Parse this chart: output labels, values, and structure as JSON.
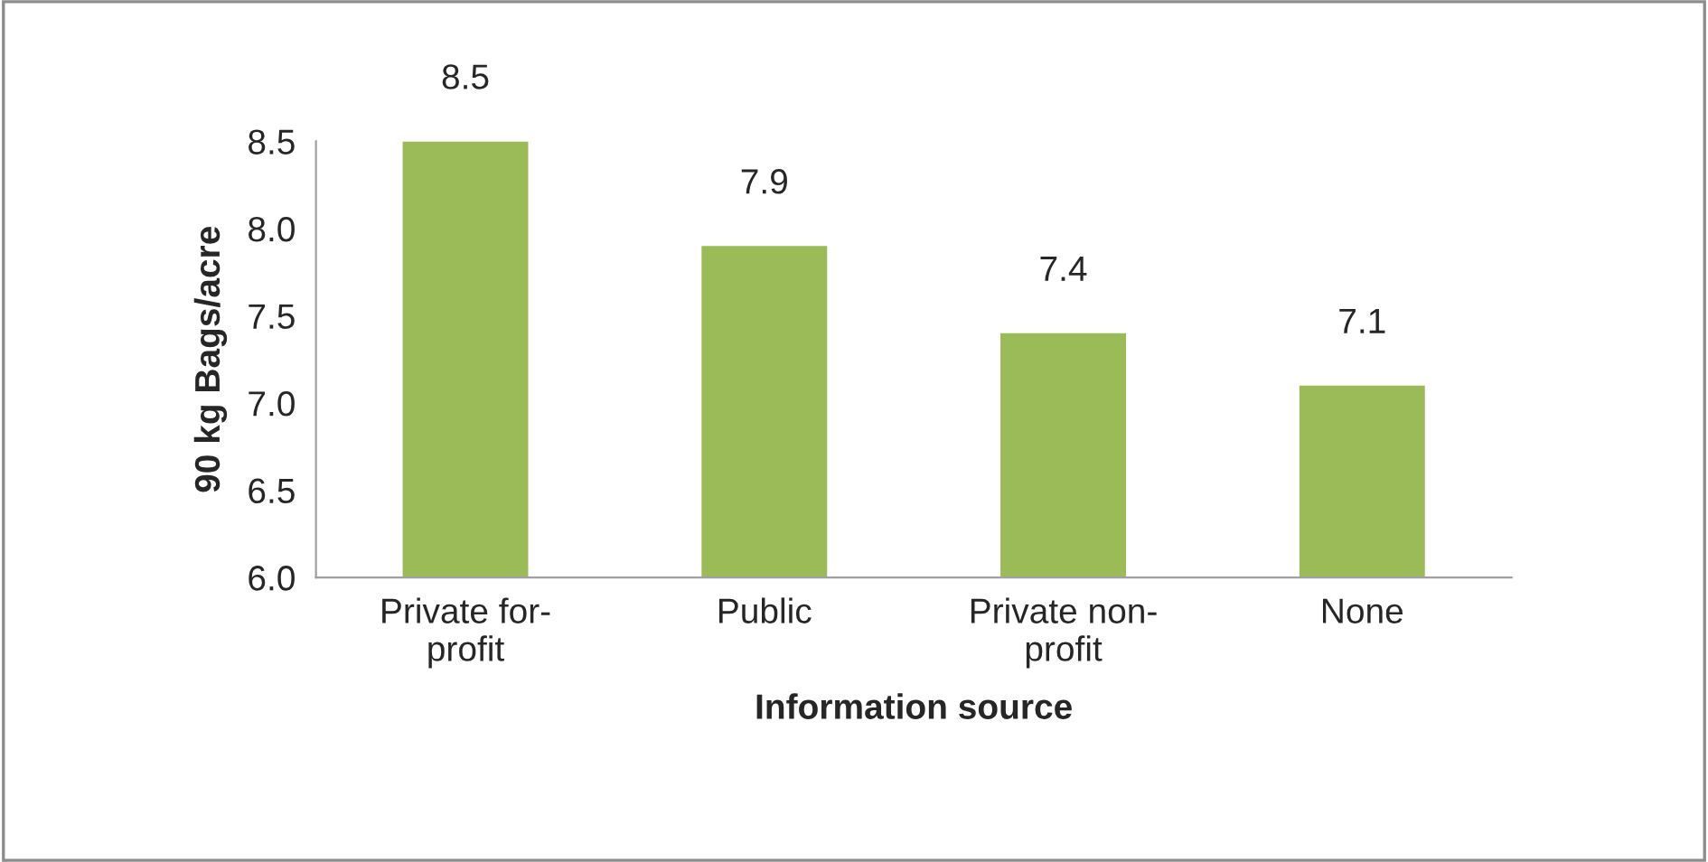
{
  "chart_data": {
    "type": "bar",
    "categories": [
      "Private for-\nprofit",
      "Public",
      "Private non-\nprofit",
      "None"
    ],
    "values": [
      8.5,
      7.9,
      7.4,
      7.1
    ],
    "color": "#9bbb59",
    "xlabel": "Information source",
    "ylabel": "90 kg Bags/acre",
    "ylim": [
      6.0,
      8.5
    ],
    "yticks": [
      {
        "value": 6.0,
        "label": "6.0"
      },
      {
        "value": 6.5,
        "label": "6.5"
      },
      {
        "value": 7.0,
        "label": "7.0"
      },
      {
        "value": 7.5,
        "label": "7.5"
      },
      {
        "value": 8.0,
        "label": "8.0"
      },
      {
        "value": 8.5,
        "label": "8.5"
      }
    ],
    "data_labels": true,
    "grid": false,
    "legend": false
  }
}
